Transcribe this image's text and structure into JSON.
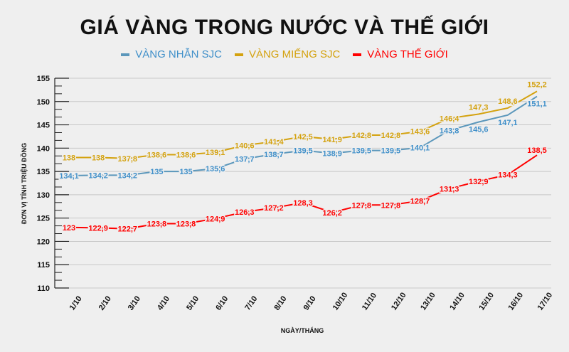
{
  "chart_data": {
    "type": "line",
    "title": "GIÁ VÀNG TRONG NƯỚC VÀ THẾ GIỚI",
    "xlabel": "NGÀY/THÁNG",
    "ylabel": "ĐƠN VỊ TÍNH TRIỆU ĐỒNG",
    "ylim": [
      110,
      155
    ],
    "yticks": [
      110,
      115,
      120,
      125,
      130,
      135,
      140,
      145,
      150,
      155
    ],
    "grid": true,
    "legend": "top",
    "categories": [
      "1/10",
      "2/10",
      "3/10",
      "4/10",
      "5/10",
      "6/10",
      "7/10",
      "8/10",
      "9/10",
      "10/10",
      "11/10",
      "12/10",
      "13/10",
      "14/10",
      "15/10",
      "16/10",
      "17/10"
    ],
    "series": [
      {
        "name": "VÀNG NHẪN SJC",
        "color": "#5b97bb",
        "label_color": "#3f8fc9",
        "values": [
          134.1,
          134.2,
          134.2,
          135,
          135,
          135.6,
          137.7,
          138.7,
          139.5,
          138.9,
          139.5,
          139.5,
          140.1,
          143.8,
          145.6,
          147.1,
          151.1
        ],
        "labels": [
          "134,1",
          "134,2",
          "134,2",
          "135",
          "135",
          "135,6",
          "137,7",
          "138,7",
          "139,5",
          "138,9",
          "139,5",
          "139,5",
          "140,1",
          "143,8",
          "145,6",
          "147,1",
          "151,1"
        ]
      },
      {
        "name": "VÀNG MIẾNG SJC",
        "color": "#d4a20f",
        "label_color": "#d4a20f",
        "values": [
          138,
          138,
          137.8,
          138.6,
          138.6,
          139.1,
          140.6,
          141.4,
          142.5,
          141.9,
          142.8,
          142.8,
          143.6,
          146.4,
          147.3,
          148.6,
          152.2
        ],
        "labels": [
          "138",
          "138",
          "137,8",
          "138,6",
          "138,6",
          "139,1",
          "140,6",
          "141,4",
          "142,5",
          "141,9",
          "142,8",
          "142,8",
          "143,6",
          "146,4",
          "147,3",
          "148,6",
          "152,2"
        ]
      },
      {
        "name": "VÀNG THẾ GIỚI",
        "color": "#ff0000",
        "label_color": "#ff0000",
        "values": [
          123,
          122.9,
          122.7,
          123.8,
          123.8,
          124.9,
          126.3,
          127.2,
          128.3,
          126.2,
          127.8,
          127.8,
          128.7,
          131.3,
          132.9,
          134.3,
          138.5
        ],
        "labels": [
          "123",
          "122,9",
          "122,7",
          "123,8",
          "123,8",
          "124,9",
          "126,3",
          "127,2",
          "128,3",
          "126,2",
          "127,8",
          "127,8",
          "128,7",
          "131,3",
          "132,9",
          "134,3",
          "138,5"
        ]
      }
    ]
  }
}
